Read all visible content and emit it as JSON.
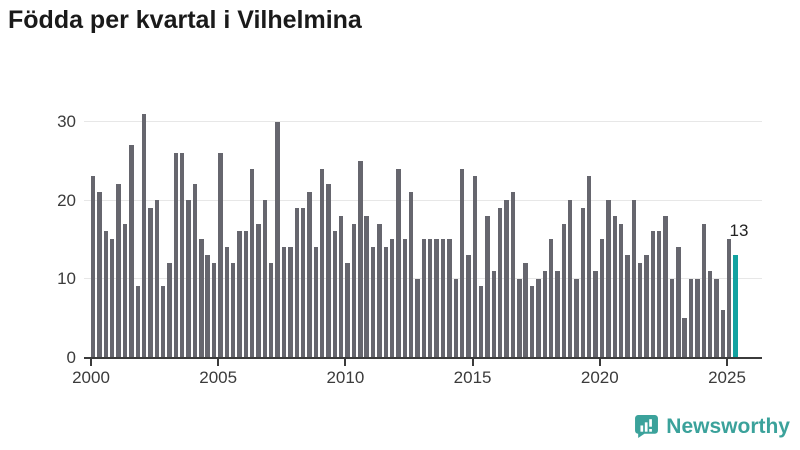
{
  "title": "Födda per kvartal i Vilhelmina",
  "chart_data": {
    "type": "bar",
    "title": "Födda per kvartal i Vilhelmina",
    "start_period": "2000 Q1",
    "frequency": "quarterly",
    "values": [
      23,
      21,
      16,
      15,
      22,
      17,
      27,
      9,
      31,
      19,
      20,
      9,
      12,
      26,
      26,
      20,
      22,
      15,
      13,
      12,
      26,
      14,
      12,
      16,
      16,
      24,
      17,
      20,
      12,
      30,
      14,
      14,
      19,
      19,
      21,
      14,
      24,
      22,
      16,
      18,
      12,
      17,
      25,
      18,
      14,
      17,
      14,
      15,
      24,
      15,
      21,
      10,
      15,
      15,
      15,
      15,
      15,
      10,
      24,
      13,
      23,
      9,
      18,
      11,
      19,
      20,
      21,
      10,
      12,
      9,
      10,
      11,
      15,
      11,
      17,
      20,
      10,
      19,
      23,
      11,
      15,
      20,
      18,
      17,
      13,
      20,
      12,
      13,
      16,
      16,
      18,
      10,
      14,
      5,
      10,
      10,
      17,
      11,
      10,
      6,
      15,
      13
    ],
    "x_tick_labels": [
      "2000",
      "2005",
      "2010",
      "2015",
      "2020",
      "2025"
    ],
    "y_ticks": [
      0,
      10,
      20,
      30
    ],
    "ylim": [
      0,
      32
    ],
    "grid": "horizontal",
    "bar_color": "#66666e",
    "highlight": {
      "index": 101,
      "label": "13",
      "color": "#12a2a0"
    }
  },
  "branding": {
    "logo_text": "Newsworthy",
    "logo_icon": "newsworthy-bar-chart-bubble-icon",
    "color": "#3ba29b"
  }
}
